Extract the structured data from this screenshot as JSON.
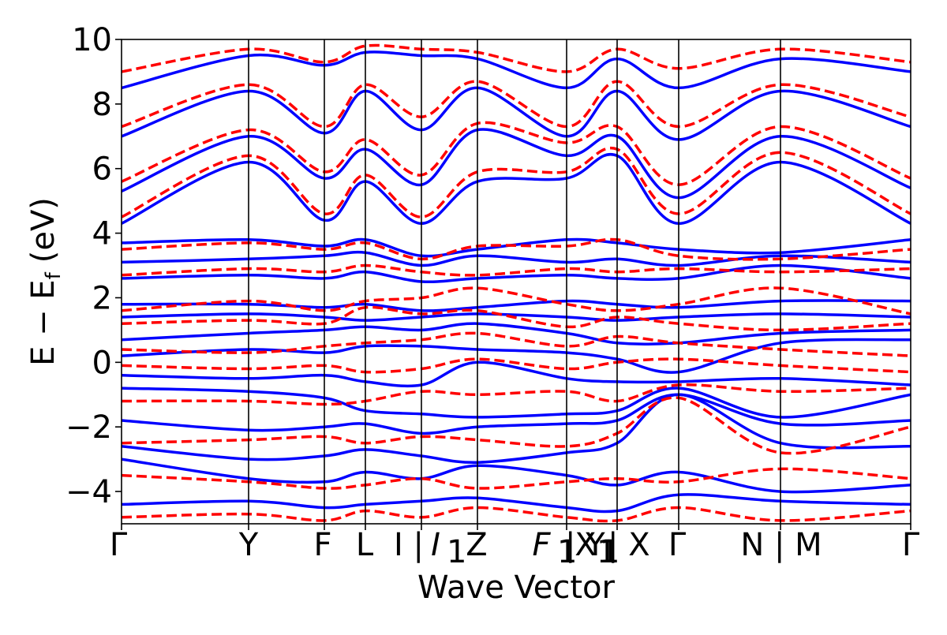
{
  "chart_data": {
    "type": "line",
    "title": "",
    "xlabel": "Wave Vector",
    "ylabel": "E − E",
    "ylabel_subscript": "f",
    "ylabel_unit": "(eV)",
    "ylim": [
      -5,
      10
    ],
    "yticks": [
      -4,
      -2,
      0,
      2,
      4,
      6,
      8,
      10
    ],
    "ytick_labels": [
      "−4",
      "−2",
      "0",
      "2",
      "4",
      "6",
      "8",
      "10"
    ],
    "grid": false,
    "legend": "none",
    "kpath": [
      {
        "label": "Γ",
        "x": 0.0
      },
      {
        "label": "Y",
        "x": 0.161
      },
      {
        "label": "F",
        "x": 0.257
      },
      {
        "label": "L",
        "x": 0.309
      },
      {
        "label": "I | I₁",
        "x": 0.38
      },
      {
        "label": "Z",
        "x": 0.451
      },
      {
        "label": "F₁ | Y₁",
        "x": 0.564
      },
      {
        "label": "X₁ | X",
        "x": 0.628
      },
      {
        "label": "Γ",
        "x": 0.706
      },
      {
        "label": "N | M",
        "x": 0.835
      },
      {
        "label": "Γ",
        "x": 1.0
      }
    ],
    "xtick_labels": [
      "Γ",
      "Y",
      "F",
      "L",
      "I | ",
      "I",
      "1",
      "Z",
      "F",
      "1",
      " | Y",
      "1",
      "X",
      "1",
      " | X",
      "Γ",
      "N | M",
      "Γ"
    ],
    "series": [
      {
        "color": "#0000ff",
        "style": "solid",
        "bands": [
          {
            "x": [
              0,
              0.161,
              0.257,
              0.309,
              0.38,
              0.451,
              0.564,
              0.628,
              0.706,
              0.835,
              1.0
            ],
            "values": [
              -4.4,
              -4.3,
              -4.5,
              -4.4,
              -4.3,
              -4.2,
              -4.5,
              -4.6,
              -4.1,
              -4.3,
              -4.4
            ]
          },
          {
            "x": [
              0,
              0.161,
              0.257,
              0.309,
              0.38,
              0.451,
              0.564,
              0.628,
              0.706,
              0.835,
              1.0
            ],
            "values": [
              -3.0,
              -3.6,
              -3.7,
              -3.4,
              -3.6,
              -3.2,
              -3.5,
              -3.8,
              -3.4,
              -4.0,
              -3.8
            ]
          },
          {
            "x": [
              0,
              0.161,
              0.257,
              0.309,
              0.38,
              0.451,
              0.564,
              0.628,
              0.706,
              0.835,
              1.0
            ],
            "values": [
              -2.6,
              -3.0,
              -2.9,
              -2.7,
              -2.9,
              -3.1,
              -2.8,
              -2.5,
              -1.0,
              -2.5,
              -2.6
            ]
          },
          {
            "x": [
              0,
              0.161,
              0.257,
              0.309,
              0.38,
              0.451,
              0.564,
              0.628,
              0.706,
              0.835,
              1.0
            ],
            "values": [
              -1.8,
              -2.1,
              -2.0,
              -1.9,
              -2.2,
              -2.0,
              -1.9,
              -1.8,
              -1.0,
              -1.9,
              -1.8
            ]
          },
          {
            "x": [
              0,
              0.161,
              0.257,
              0.309,
              0.38,
              0.451,
              0.564,
              0.628,
              0.706,
              0.835,
              1.0
            ],
            "values": [
              -0.8,
              -0.9,
              -1.1,
              -1.5,
              -1.6,
              -1.7,
              -1.6,
              -1.5,
              -0.8,
              -1.7,
              -1.0
            ]
          },
          {
            "x": [
              0,
              0.161,
              0.257,
              0.309,
              0.38,
              0.451,
              0.564,
              0.628,
              0.706,
              0.835,
              1.0
            ],
            "values": [
              -0.4,
              -0.5,
              -0.4,
              -0.6,
              -0.7,
              0.0,
              -0.5,
              -0.6,
              -0.6,
              -0.5,
              -0.7
            ]
          },
          {
            "x": [
              0,
              0.161,
              0.257,
              0.309,
              0.38,
              0.451,
              0.564,
              0.628,
              0.706,
              0.835,
              1.0
            ],
            "values": [
              0.2,
              0.4,
              0.3,
              0.5,
              0.5,
              0.4,
              0.3,
              0.1,
              -0.3,
              0.6,
              0.7
            ]
          },
          {
            "x": [
              0,
              0.161,
              0.257,
              0.309,
              0.38,
              0.451,
              0.564,
              0.628,
              0.706,
              0.835,
              1.0
            ],
            "values": [
              0.7,
              0.9,
              1.0,
              1.1,
              1.0,
              1.2,
              0.9,
              0.6,
              0.6,
              0.9,
              1.0
            ]
          },
          {
            "x": [
              0,
              0.161,
              0.257,
              0.309,
              0.38,
              0.451,
              0.564,
              0.628,
              0.706,
              0.835,
              1.0
            ],
            "values": [
              1.4,
              1.5,
              1.4,
              1.3,
              1.4,
              1.5,
              1.4,
              1.3,
              1.4,
              1.5,
              1.4
            ]
          },
          {
            "x": [
              0,
              0.161,
              0.257,
              0.309,
              0.38,
              0.451,
              0.564,
              0.628,
              0.706,
              0.835,
              1.0
            ],
            "values": [
              1.8,
              1.8,
              1.7,
              1.8,
              1.6,
              1.7,
              1.9,
              1.8,
              1.7,
              1.9,
              1.9
            ]
          },
          {
            "x": [
              0,
              0.161,
              0.257,
              0.309,
              0.38,
              0.451,
              0.564,
              0.628,
              0.706,
              0.835,
              1.0
            ],
            "values": [
              2.6,
              2.7,
              2.6,
              2.8,
              2.5,
              2.6,
              2.7,
              2.6,
              2.6,
              3.0,
              2.6
            ]
          },
          {
            "x": [
              0,
              0.161,
              0.257,
              0.309,
              0.38,
              0.451,
              0.564,
              0.628,
              0.706,
              0.835,
              1.0
            ],
            "values": [
              3.1,
              3.2,
              3.3,
              3.4,
              3.0,
              3.3,
              3.1,
              3.2,
              3.0,
              3.3,
              3.1
            ]
          },
          {
            "x": [
              0,
              0.161,
              0.257,
              0.309,
              0.38,
              0.451,
              0.564,
              0.628,
              0.706,
              0.835,
              1.0
            ],
            "values": [
              3.7,
              3.8,
              3.6,
              3.8,
              3.3,
              3.5,
              3.8,
              3.7,
              3.5,
              3.4,
              3.8
            ]
          },
          {
            "x": [
              0,
              0.161,
              0.257,
              0.309,
              0.38,
              0.451,
              0.564,
              0.628,
              0.706,
              0.835,
              1.0
            ],
            "values": [
              4.3,
              6.2,
              4.4,
              5.6,
              4.3,
              5.6,
              5.7,
              6.4,
              4.3,
              6.2,
              4.3
            ]
          },
          {
            "x": [
              0,
              0.161,
              0.257,
              0.309,
              0.38,
              0.451,
              0.564,
              0.628,
              0.706,
              0.835,
              1.0
            ],
            "values": [
              5.3,
              7.0,
              5.7,
              6.6,
              5.5,
              7.2,
              6.4,
              7.0,
              5.1,
              7.0,
              5.4
            ]
          },
          {
            "x": [
              0,
              0.161,
              0.257,
              0.309,
              0.38,
              0.451,
              0.564,
              0.628,
              0.706,
              0.835,
              1.0
            ],
            "values": [
              7.0,
              8.4,
              7.1,
              8.4,
              7.2,
              8.5,
              7.0,
              8.4,
              6.9,
              8.4,
              7.3
            ]
          },
          {
            "x": [
              0,
              0.161,
              0.257,
              0.309,
              0.38,
              0.451,
              0.564,
              0.628,
              0.706,
              0.835,
              1.0
            ],
            "values": [
              8.5,
              9.5,
              9.2,
              9.6,
              9.5,
              9.4,
              8.5,
              9.4,
              8.5,
              9.4,
              9.0
            ]
          }
        ]
      },
      {
        "color": "#ff0000",
        "style": "dashed",
        "bands": [
          {
            "x": [
              0,
              0.161,
              0.257,
              0.309,
              0.38,
              0.451,
              0.564,
              0.628,
              0.706,
              0.835,
              1.0
            ],
            "values": [
              -4.8,
              -4.7,
              -4.9,
              -4.6,
              -4.8,
              -4.5,
              -4.8,
              -4.9,
              -4.5,
              -4.9,
              -4.6
            ]
          },
          {
            "x": [
              0,
              0.161,
              0.257,
              0.309,
              0.38,
              0.451,
              0.564,
              0.628,
              0.706,
              0.835,
              1.0
            ],
            "values": [
              -3.5,
              -3.7,
              -3.9,
              -3.8,
              -3.6,
              -3.9,
              -3.7,
              -3.6,
              -3.7,
              -3.3,
              -3.6
            ]
          },
          {
            "x": [
              0,
              0.161,
              0.257,
              0.309,
              0.38,
              0.451,
              0.564,
              0.628,
              0.706,
              0.835,
              1.0
            ],
            "values": [
              -2.5,
              -2.4,
              -2.3,
              -2.5,
              -2.3,
              -2.4,
              -2.6,
              -2.2,
              -1.1,
              -2.8,
              -2.0
            ]
          },
          {
            "x": [
              0,
              0.161,
              0.257,
              0.309,
              0.38,
              0.451,
              0.564,
              0.628,
              0.706,
              0.835,
              1.0
            ],
            "values": [
              -1.2,
              -1.2,
              -1.3,
              -1.2,
              -0.9,
              -1.0,
              -0.9,
              -1.2,
              -0.7,
              -0.9,
              -0.8
            ]
          },
          {
            "x": [
              0,
              0.161,
              0.257,
              0.309,
              0.38,
              0.451,
              0.564,
              0.628,
              0.706,
              0.835,
              1.0
            ],
            "values": [
              -0.1,
              -0.2,
              -0.1,
              -0.3,
              -0.2,
              0.1,
              -0.2,
              0.0,
              0.1,
              -0.1,
              -0.3
            ]
          },
          {
            "x": [
              0,
              0.161,
              0.257,
              0.309,
              0.38,
              0.451,
              0.564,
              0.628,
              0.706,
              0.835,
              1.0
            ],
            "values": [
              0.4,
              0.3,
              0.5,
              0.6,
              0.7,
              0.9,
              0.5,
              0.8,
              0.6,
              0.4,
              0.2
            ]
          },
          {
            "x": [
              0,
              0.161,
              0.257,
              0.309,
              0.38,
              0.451,
              0.564,
              0.628,
              0.706,
              0.835,
              1.0
            ],
            "values": [
              1.2,
              1.3,
              1.2,
              1.7,
              1.5,
              1.6,
              1.1,
              1.4,
              1.2,
              1.0,
              1.2
            ]
          },
          {
            "x": [
              0,
              0.161,
              0.257,
              0.309,
              0.38,
              0.451,
              0.564,
              0.628,
              0.706,
              0.835,
              1.0
            ],
            "values": [
              1.6,
              1.9,
              1.6,
              1.9,
              2.0,
              2.3,
              1.8,
              1.6,
              1.8,
              2.3,
              1.5
            ]
          },
          {
            "x": [
              0,
              0.161,
              0.257,
              0.309,
              0.38,
              0.451,
              0.564,
              0.628,
              0.706,
              0.835,
              1.0
            ],
            "values": [
              2.7,
              2.9,
              2.8,
              3.0,
              2.8,
              2.7,
              2.9,
              2.8,
              2.9,
              2.8,
              2.9
            ]
          },
          {
            "x": [
              0,
              0.161,
              0.257,
              0.309,
              0.38,
              0.451,
              0.564,
              0.628,
              0.706,
              0.835,
              1.0
            ],
            "values": [
              3.5,
              3.7,
              3.5,
              3.7,
              3.2,
              3.6,
              3.6,
              3.8,
              3.3,
              3.2,
              3.5
            ]
          },
          {
            "x": [
              0,
              0.161,
              0.257,
              0.309,
              0.38,
              0.451,
              0.564,
              0.628,
              0.706,
              0.835,
              1.0
            ],
            "values": [
              4.5,
              6.4,
              4.6,
              5.8,
              4.5,
              5.9,
              5.9,
              6.6,
              4.6,
              6.5,
              4.6
            ]
          },
          {
            "x": [
              0,
              0.161,
              0.257,
              0.309,
              0.38,
              0.451,
              0.564,
              0.628,
              0.706,
              0.835,
              1.0
            ],
            "values": [
              5.6,
              7.2,
              5.9,
              6.9,
              5.8,
              7.4,
              6.8,
              7.3,
              5.5,
              7.3,
              5.7
            ]
          },
          {
            "x": [
              0,
              0.161,
              0.257,
              0.309,
              0.38,
              0.451,
              0.564,
              0.628,
              0.706,
              0.835,
              1.0
            ],
            "values": [
              7.3,
              8.6,
              7.3,
              8.6,
              7.6,
              8.7,
              7.3,
              8.7,
              7.3,
              8.6,
              7.6
            ]
          },
          {
            "x": [
              0,
              0.161,
              0.257,
              0.309,
              0.38,
              0.451,
              0.564,
              0.628,
              0.706,
              0.835,
              1.0
            ],
            "values": [
              9.0,
              9.7,
              9.3,
              9.8,
              9.7,
              9.6,
              9.0,
              9.7,
              9.1,
              9.7,
              9.3
            ]
          }
        ]
      }
    ]
  }
}
